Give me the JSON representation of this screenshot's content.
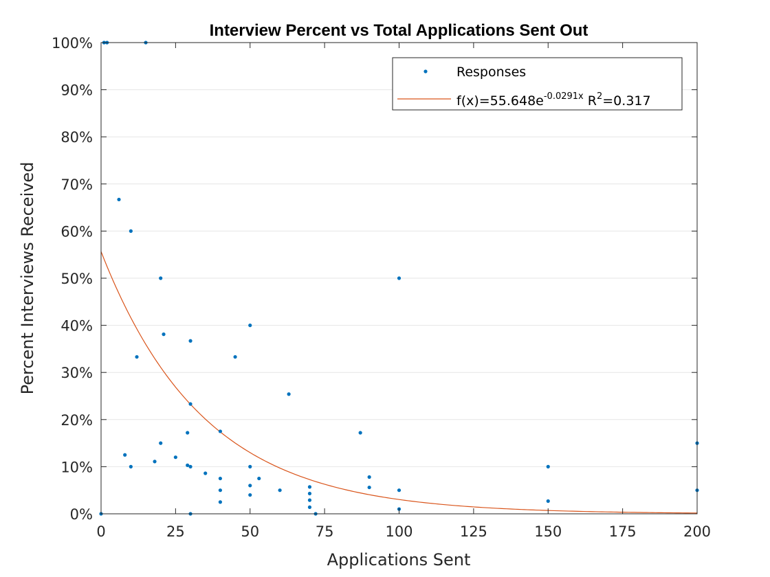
{
  "chart_data": {
    "type": "scatter",
    "title": "Interview Percent vs Total Applications Sent Out",
    "xlabel": "Applications Sent",
    "ylabel": "Percent Interviews Received",
    "xlim": [
      0,
      200
    ],
    "ylim": [
      0,
      100
    ],
    "x_ticks": [
      0,
      25,
      50,
      75,
      100,
      125,
      150,
      175,
      200
    ],
    "y_ticks": [
      0,
      10,
      20,
      30,
      40,
      50,
      60,
      70,
      80,
      90,
      100
    ],
    "y_tick_suffix": "%",
    "grid": "horizontal",
    "legend_position": "top-right",
    "colors": {
      "points": "#0072bd",
      "fit": "#d95319",
      "axes": "#262626",
      "grid": "#e6e6e6"
    },
    "series": [
      {
        "name": "Responses",
        "kind": "points",
        "points": [
          [
            0,
            0
          ],
          [
            1,
            100
          ],
          [
            2,
            100
          ],
          [
            6,
            66.7
          ],
          [
            8,
            12.5
          ],
          [
            10,
            60
          ],
          [
            10,
            10
          ],
          [
            12,
            33.3
          ],
          [
            15,
            100
          ],
          [
            18,
            11.1
          ],
          [
            20,
            50
          ],
          [
            20,
            15
          ],
          [
            21,
            38.1
          ],
          [
            25,
            12
          ],
          [
            29,
            17.2
          ],
          [
            29,
            10.3
          ],
          [
            30,
            36.7
          ],
          [
            30,
            23.3
          ],
          [
            30,
            10
          ],
          [
            30,
            0
          ],
          [
            35,
            8.6
          ],
          [
            40,
            17.5
          ],
          [
            40,
            7.5
          ],
          [
            40,
            5
          ],
          [
            40,
            2.5
          ],
          [
            45,
            33.3
          ],
          [
            50,
            40
          ],
          [
            50,
            10
          ],
          [
            50,
            6
          ],
          [
            50,
            4
          ],
          [
            53,
            7.5
          ],
          [
            60,
            5
          ],
          [
            63,
            25.4
          ],
          [
            70,
            5.7
          ],
          [
            70,
            4.3
          ],
          [
            70,
            2.9
          ],
          [
            70,
            1.4
          ],
          [
            72,
            0
          ],
          [
            87,
            17.2
          ],
          [
            90,
            7.8
          ],
          [
            90,
            5.6
          ],
          [
            100,
            50
          ],
          [
            100,
            5
          ],
          [
            100,
            1
          ],
          [
            150,
            10
          ],
          [
            150,
            2.7
          ],
          [
            200,
            15
          ],
          [
            200,
            5
          ]
        ]
      },
      {
        "name_prefix": "f(x)=55.648e",
        "name_exponent": "-0.0291x",
        "name_r2_label": " R",
        "name_r2_exponent": "2",
        "name_r2_value": "=0.317",
        "kind": "fit",
        "a": 55.648,
        "b": -0.0291
      }
    ]
  }
}
